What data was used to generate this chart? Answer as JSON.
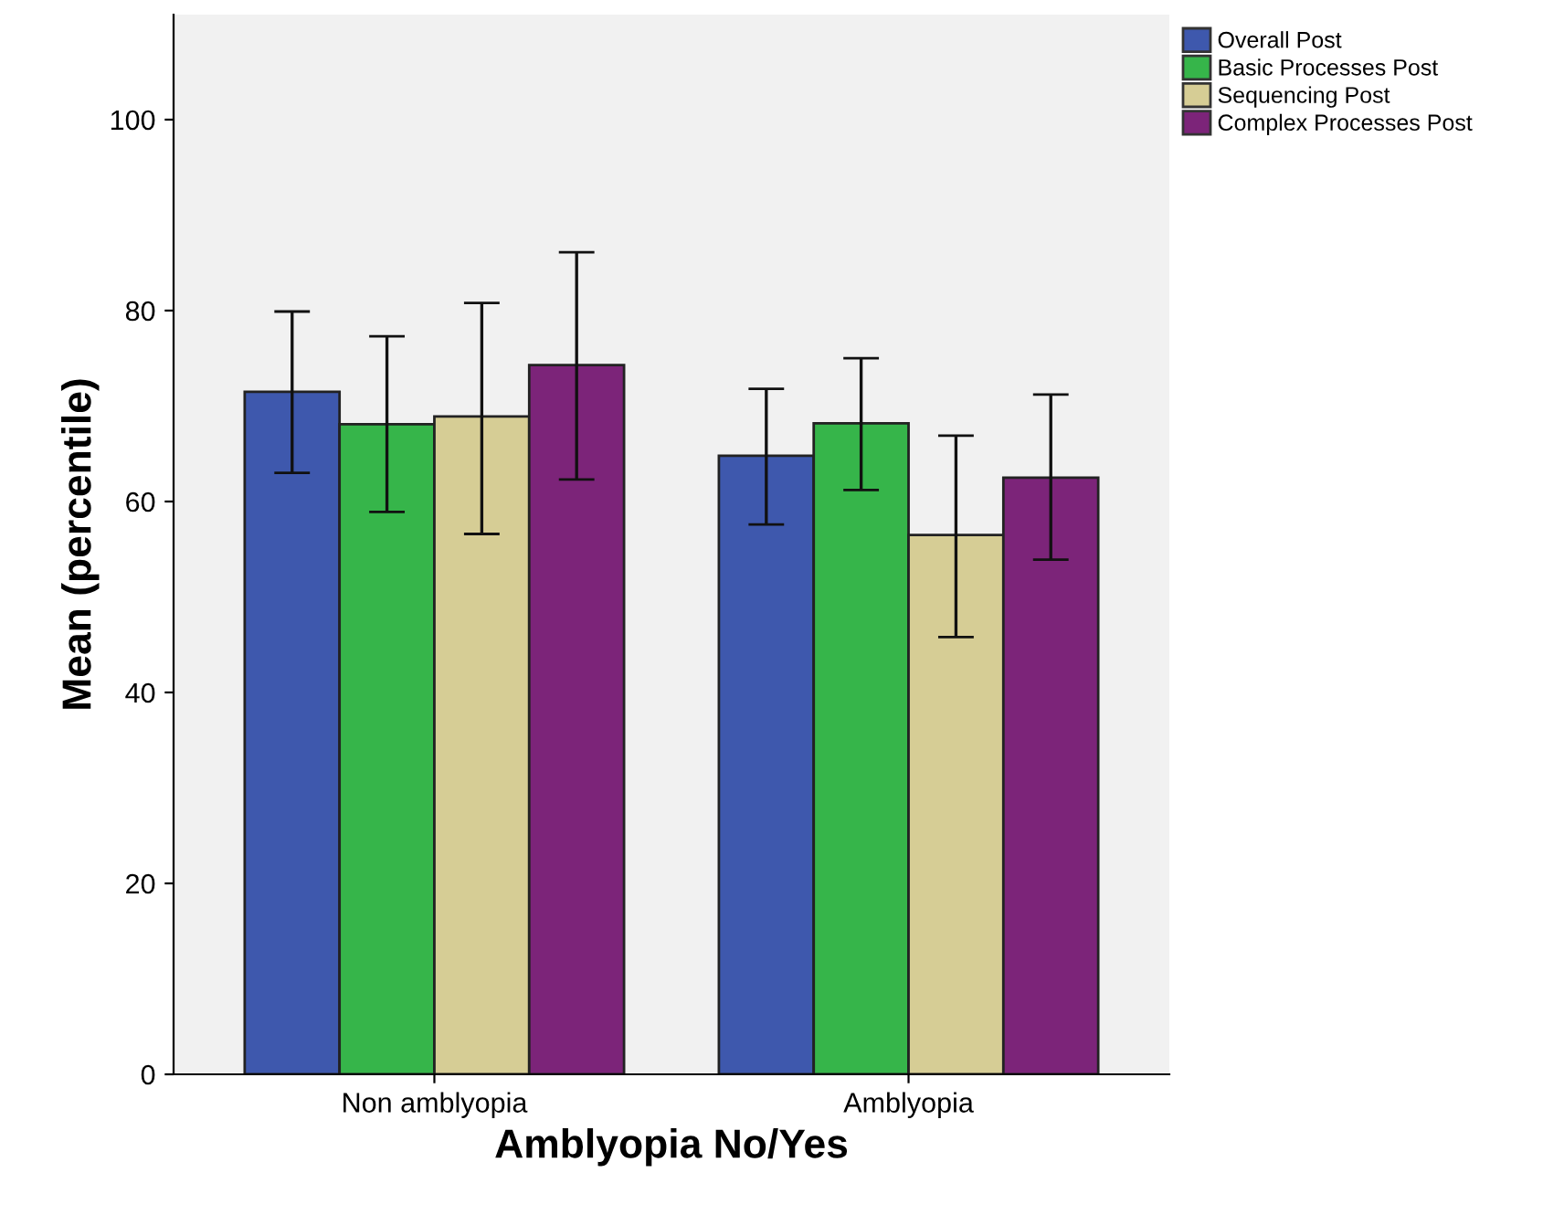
{
  "chart_data": {
    "type": "bar",
    "xlabel": "Amblyopia No/Yes",
    "ylabel": "Mean (percentile)",
    "categories": [
      "Non amblyopia",
      "Amblyopia"
    ],
    "series": [
      {
        "name": "Overall Post",
        "color": "#3e58ad",
        "values": [
          71.5,
          64.8
        ],
        "errors": [
          [
            63.0,
            79.9
          ],
          [
            57.6,
            71.8
          ]
        ]
      },
      {
        "name": "Basic Processes Post",
        "color": "#36b54a",
        "values": [
          68.1,
          68.2
        ],
        "errors": [
          [
            58.9,
            77.3
          ],
          [
            61.2,
            75.0
          ]
        ]
      },
      {
        "name": "Sequencing Post",
        "color": "#d6cd95",
        "values": [
          68.9,
          56.5
        ],
        "errors": [
          [
            56.6,
            80.8
          ],
          [
            45.8,
            66.9
          ]
        ]
      },
      {
        "name": "Complex Processes Post",
        "color": "#7c2479",
        "values": [
          74.3,
          62.5
        ],
        "errors": [
          [
            62.3,
            86.1
          ],
          [
            53.9,
            71.2
          ]
        ]
      }
    ],
    "ylim": [
      0,
      111
    ],
    "yticks": [
      0,
      20,
      40,
      60,
      80,
      100
    ],
    "grid": false,
    "legend": "top right"
  }
}
